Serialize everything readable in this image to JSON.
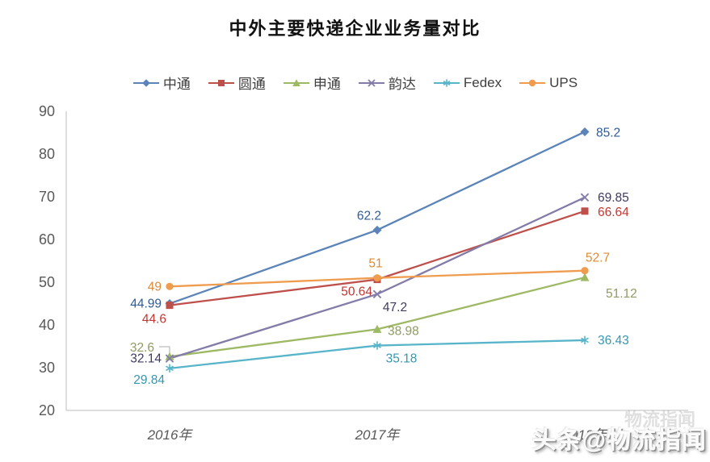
{
  "title": "中外主要快递企业业务量对比",
  "watermark": {
    "text": "头条@物流指闻",
    "echo": "物流指闻"
  },
  "chart_data": {
    "type": "line",
    "title": "中外主要快递企业业务量对比",
    "categories": [
      "2016年",
      "2017年",
      "2018年"
    ],
    "y_axis": {
      "min": 20,
      "max": 90,
      "step": 10,
      "ticks": [
        90,
        80,
        70,
        60,
        50,
        40,
        30,
        20
      ]
    },
    "grid": false,
    "legend_position": "top",
    "series": [
      {
        "name": "中通",
        "marker": "diamond",
        "color": "#5B84B8",
        "label_color": "#2E5B97",
        "values": [
          44.99,
          62.2,
          85.2
        ]
      },
      {
        "name": "圆通",
        "marker": "square",
        "color": "#BE504B",
        "label_color": "#C33631",
        "values": [
          44.6,
          50.64,
          66.64
        ]
      },
      {
        "name": "申通",
        "marker": "triangle",
        "color": "#9EB964",
        "label_color": "#8E9B62",
        "values": [
          32.6,
          38.98,
          51.12
        ]
      },
      {
        "name": "韵达",
        "marker": "x",
        "color": "#837CA8",
        "label_color": "#3F3A5F",
        "values": [
          32.14,
          47.2,
          69.85
        ]
      },
      {
        "name": "Fedex",
        "marker": "asterisk",
        "color": "#58B5C9",
        "label_color": "#3597AF",
        "values": [
          29.84,
          35.18,
          36.43
        ]
      },
      {
        "name": "UPS",
        "marker": "circle",
        "color": "#F09C4F",
        "label_color": "#DE8A33",
        "values": [
          49,
          51,
          52.7
        ]
      }
    ],
    "axis_color": "#C9C9C9",
    "tick_label_color": "#595959"
  }
}
